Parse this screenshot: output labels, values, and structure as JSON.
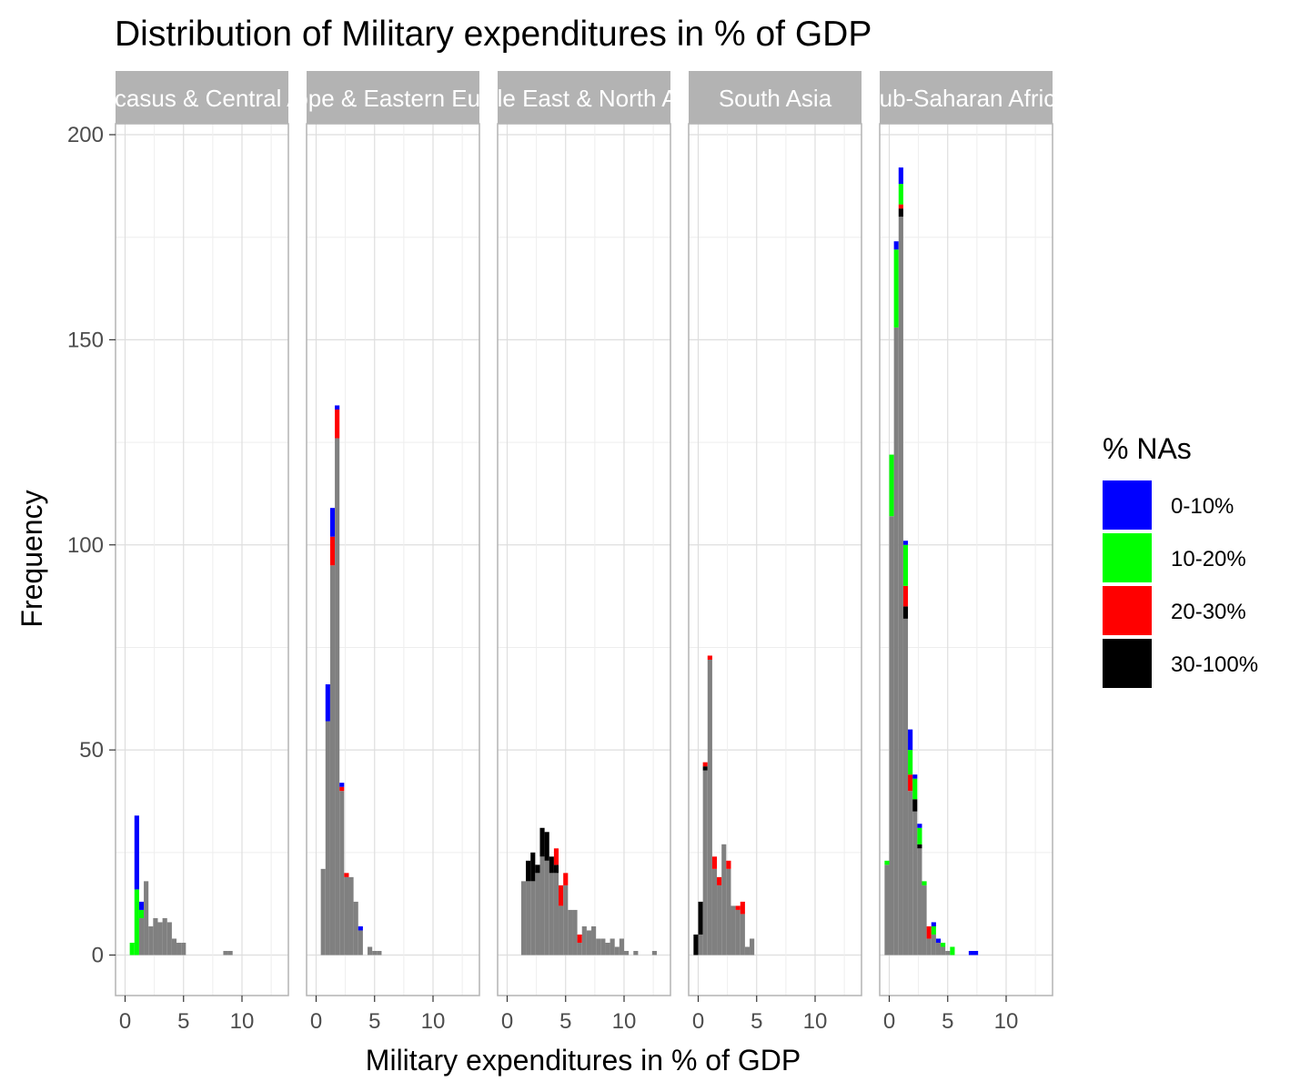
{
  "chart_data": {
    "type": "bar",
    "subtype": "faceted stacked histogram",
    "title": "Distribution of Military expenditures in % of GDP",
    "xlabel": "Military expenditures in % of GDP",
    "ylabel": "Frequency",
    "xlim": [
      -0.8,
      13.9
    ],
    "ylim": [
      -10,
      210
    ],
    "x_ticks": [
      0,
      5,
      10
    ],
    "y_ticks": [
      0,
      50,
      100,
      150,
      200
    ],
    "bin_width": 0.4,
    "grid": true,
    "legend": {
      "title": "% NAs",
      "position": "right",
      "entries": [
        {
          "label": "0-10%",
          "color": "#0000ff"
        },
        {
          "label": "10-20%",
          "color": "#00ff00"
        },
        {
          "label": "20-30%",
          "color": "#ff0000"
        },
        {
          "label": "30-100%",
          "color": "#000000"
        }
      ]
    },
    "base_color": "#808080",
    "panels": [
      {
        "label": "Caucasus & Central Asia",
        "bins": [
          {
            "x": 0.4,
            "base": 0,
            "na": [
              0,
              3,
              0,
              0
            ]
          },
          {
            "x": 0.8,
            "base": 0,
            "na": [
              18,
              16,
              0,
              0
            ]
          },
          {
            "x": 1.2,
            "base": 9,
            "na": [
              2,
              2,
              0,
              0
            ]
          },
          {
            "x": 1.6,
            "base": 18,
            "na": [
              0,
              0,
              0,
              0
            ]
          },
          {
            "x": 2.0,
            "base": 7,
            "na": [
              0,
              0,
              0,
              0
            ]
          },
          {
            "x": 2.4,
            "base": 9,
            "na": [
              0,
              0,
              0,
              0
            ]
          },
          {
            "x": 2.8,
            "base": 8,
            "na": [
              0,
              0,
              0,
              0
            ]
          },
          {
            "x": 3.2,
            "base": 9,
            "na": [
              0,
              0,
              0,
              0
            ]
          },
          {
            "x": 3.6,
            "base": 8,
            "na": [
              0,
              0,
              0,
              0
            ]
          },
          {
            "x": 4.0,
            "base": 4,
            "na": [
              0,
              0,
              0,
              0
            ]
          },
          {
            "x": 4.4,
            "base": 3,
            "na": [
              0,
              0,
              0,
              0
            ]
          },
          {
            "x": 4.8,
            "base": 3,
            "na": [
              0,
              0,
              0,
              0
            ]
          },
          {
            "x": 8.4,
            "base": 1,
            "na": [
              0,
              0,
              0,
              0
            ]
          },
          {
            "x": 8.8,
            "base": 1,
            "na": [
              0,
              0,
              0,
              0
            ]
          }
        ]
      },
      {
        "label": "Europe & Eastern Europe",
        "bins": [
          {
            "x": 0.4,
            "base": 21,
            "na": [
              0,
              0,
              0,
              0
            ]
          },
          {
            "x": 0.8,
            "base": 57,
            "na": [
              9,
              0,
              0,
              0
            ]
          },
          {
            "x": 1.2,
            "base": 95,
            "na": [
              7,
              0,
              7,
              0
            ]
          },
          {
            "x": 1.6,
            "base": 126,
            "na": [
              1,
              0,
              7,
              0
            ]
          },
          {
            "x": 2.0,
            "base": 40,
            "na": [
              1,
              0,
              1,
              0
            ]
          },
          {
            "x": 2.4,
            "base": 19,
            "na": [
              0,
              0,
              1,
              0
            ]
          },
          {
            "x": 2.8,
            "base": 19,
            "na": [
              0,
              0,
              0,
              0
            ]
          },
          {
            "x": 3.2,
            "base": 13,
            "na": [
              0,
              0,
              0,
              0
            ]
          },
          {
            "x": 3.6,
            "base": 6,
            "na": [
              1,
              0,
              0,
              0
            ]
          },
          {
            "x": 4.4,
            "base": 2,
            "na": [
              0,
              0,
              0,
              0
            ]
          },
          {
            "x": 4.8,
            "base": 1,
            "na": [
              0,
              0,
              0,
              0
            ]
          },
          {
            "x": 5.2,
            "base": 1,
            "na": [
              0,
              0,
              0,
              0
            ]
          }
        ]
      },
      {
        "label": "Middle East & North Africa",
        "bins": [
          {
            "x": 1.2,
            "base": 18,
            "na": [
              0,
              0,
              0,
              0
            ]
          },
          {
            "x": 1.6,
            "base": 18,
            "na": [
              0,
              0,
              0,
              5
            ]
          },
          {
            "x": 2.0,
            "base": 18,
            "na": [
              0,
              0,
              0,
              7
            ]
          },
          {
            "x": 2.4,
            "base": 20,
            "na": [
              0,
              0,
              0,
              2
            ]
          },
          {
            "x": 2.8,
            "base": 24,
            "na": [
              0,
              0,
              0,
              7
            ]
          },
          {
            "x": 3.2,
            "base": 23,
            "na": [
              0,
              0,
              0,
              7
            ]
          },
          {
            "x": 3.6,
            "base": 20,
            "na": [
              0,
              0,
              0,
              4
            ]
          },
          {
            "x": 4.0,
            "base": 20,
            "na": [
              0,
              0,
              4,
              2
            ]
          },
          {
            "x": 4.4,
            "base": 12,
            "na": [
              0,
              0,
              5,
              0
            ]
          },
          {
            "x": 4.8,
            "base": 17,
            "na": [
              0,
              0,
              3,
              0
            ]
          },
          {
            "x": 5.2,
            "base": 11,
            "na": [
              0,
              0,
              0,
              0
            ]
          },
          {
            "x": 5.6,
            "base": 11,
            "na": [
              0,
              0,
              0,
              0
            ]
          },
          {
            "x": 6.0,
            "base": 3,
            "na": [
              0,
              0,
              2,
              0
            ]
          },
          {
            "x": 6.4,
            "base": 7,
            "na": [
              0,
              0,
              0,
              0
            ]
          },
          {
            "x": 6.8,
            "base": 6,
            "na": [
              0,
              0,
              0,
              0
            ]
          },
          {
            "x": 7.2,
            "base": 7,
            "na": [
              0,
              0,
              0,
              0
            ]
          },
          {
            "x": 7.6,
            "base": 4,
            "na": [
              0,
              0,
              0,
              0
            ]
          },
          {
            "x": 8.0,
            "base": 4,
            "na": [
              0,
              0,
              0,
              0
            ]
          },
          {
            "x": 8.4,
            "base": 3,
            "na": [
              0,
              0,
              0,
              0
            ]
          },
          {
            "x": 8.8,
            "base": 4,
            "na": [
              0,
              0,
              0,
              0
            ]
          },
          {
            "x": 9.2,
            "base": 2,
            "na": [
              0,
              0,
              0,
              0
            ]
          },
          {
            "x": 9.6,
            "base": 4,
            "na": [
              0,
              0,
              0,
              0
            ]
          },
          {
            "x": 10.0,
            "base": 1,
            "na": [
              0,
              0,
              0,
              0
            ]
          },
          {
            "x": 10.8,
            "base": 1,
            "na": [
              0,
              0,
              0,
              0
            ]
          },
          {
            "x": 12.4,
            "base": 1,
            "na": [
              0,
              0,
              0,
              0
            ]
          }
        ]
      },
      {
        "label": "South Asia",
        "bins": [
          {
            "x": -0.4,
            "base": 0,
            "na": [
              0,
              0,
              0,
              5
            ]
          },
          {
            "x": 0.0,
            "base": 5,
            "na": [
              0,
              0,
              0,
              8
            ]
          },
          {
            "x": 0.4,
            "base": 45,
            "na": [
              0,
              0,
              1,
              1
            ]
          },
          {
            "x": 0.8,
            "base": 72,
            "na": [
              0,
              0,
              1,
              0
            ]
          },
          {
            "x": 1.2,
            "base": 21,
            "na": [
              0,
              0,
              3,
              0
            ]
          },
          {
            "x": 1.6,
            "base": 17,
            "na": [
              0,
              0,
              2,
              0
            ]
          },
          {
            "x": 2.0,
            "base": 27,
            "na": [
              0,
              0,
              0,
              0
            ]
          },
          {
            "x": 2.4,
            "base": 21,
            "na": [
              0,
              0,
              2,
              0
            ]
          },
          {
            "x": 2.8,
            "base": 12,
            "na": [
              0,
              0,
              0,
              0
            ]
          },
          {
            "x": 3.2,
            "base": 11,
            "na": [
              0,
              0,
              1,
              0
            ]
          },
          {
            "x": 3.6,
            "base": 10,
            "na": [
              0,
              0,
              3,
              0
            ]
          },
          {
            "x": 4.0,
            "base": 2,
            "na": [
              0,
              0,
              0,
              0
            ]
          },
          {
            "x": 4.4,
            "base": 4,
            "na": [
              0,
              0,
              0,
              0
            ]
          }
        ]
      },
      {
        "label": "Sub-Saharan Africa",
        "bins": [
          {
            "x": -0.4,
            "base": 22,
            "na": [
              0,
              1,
              0,
              0
            ]
          },
          {
            "x": 0.0,
            "base": 107,
            "na": [
              0,
              15,
              0,
              0
            ]
          },
          {
            "x": 0.4,
            "base": 153,
            "na": [
              2,
              19,
              0,
              0
            ]
          },
          {
            "x": 0.8,
            "base": 180,
            "na": [
              4,
              5,
              1,
              2
            ]
          },
          {
            "x": 1.2,
            "base": 82,
            "na": [
              1,
              10,
              5,
              3
            ]
          },
          {
            "x": 1.6,
            "base": 40,
            "na": [
              5,
              6,
              4,
              0
            ]
          },
          {
            "x": 2.0,
            "base": 35,
            "na": [
              1,
              5,
              0,
              3
            ]
          },
          {
            "x": 2.4,
            "base": 26,
            "na": [
              1,
              4,
              0,
              1
            ]
          },
          {
            "x": 2.8,
            "base": 17,
            "na": [
              0,
              1,
              0,
              0
            ]
          },
          {
            "x": 3.2,
            "base": 4,
            "na": [
              0,
              0,
              3,
              0
            ]
          },
          {
            "x": 3.6,
            "base": 5,
            "na": [
              1,
              2,
              0,
              0
            ]
          },
          {
            "x": 4.0,
            "base": 3,
            "na": [
              1,
              0,
              0,
              0
            ]
          },
          {
            "x": 4.4,
            "base": 2,
            "na": [
              0,
              1,
              0,
              0
            ]
          },
          {
            "x": 4.8,
            "base": 1,
            "na": [
              0,
              0,
              0,
              0
            ]
          },
          {
            "x": 5.2,
            "base": 0,
            "na": [
              0,
              2,
              0,
              0
            ]
          },
          {
            "x": 6.8,
            "base": 0,
            "na": [
              1,
              0,
              0,
              0
            ]
          },
          {
            "x": 7.2,
            "base": 0,
            "na": [
              1,
              0,
              0,
              0
            ]
          }
        ]
      }
    ]
  }
}
